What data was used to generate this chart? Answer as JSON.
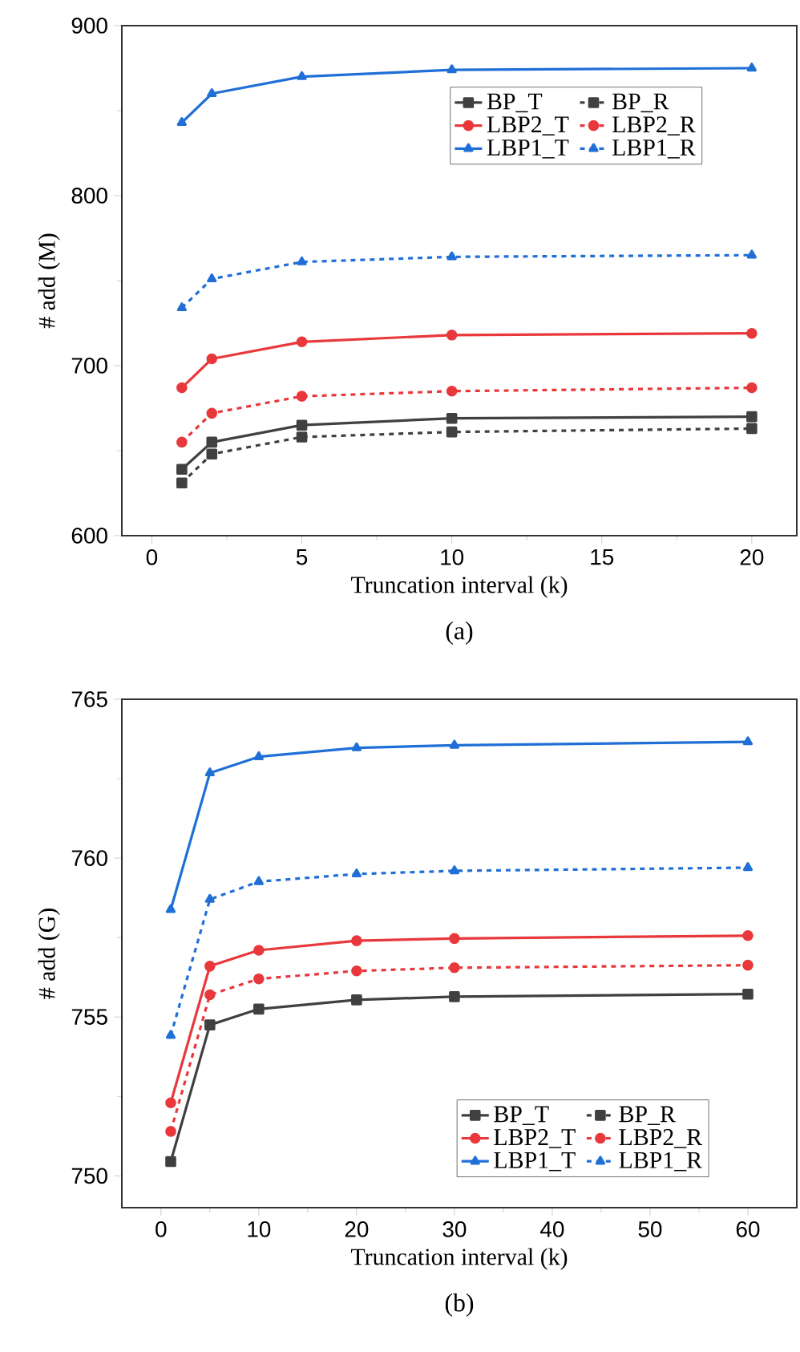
{
  "chart_data": [
    {
      "type": "line",
      "title": "(a)",
      "xlabel": "Truncation interval (k)",
      "ylabel": "# add (M)",
      "x": [
        1,
        2,
        5,
        10,
        20
      ],
      "xlim": [
        -1,
        21.5
      ],
      "ylim": [
        600,
        900
      ],
      "xticks": [
        0,
        5,
        10,
        15,
        20
      ],
      "yticks": [
        600,
        700,
        800,
        900
      ],
      "legend": "top right",
      "grid": false,
      "series": [
        {
          "name": "BP_T",
          "color": "#404040",
          "marker": "square",
          "line_style": "solid",
          "values": [
            639,
            655,
            665,
            669,
            670
          ]
        },
        {
          "name": "BP_R",
          "color": "#404040",
          "marker": "square",
          "line_style": "dashed",
          "values": [
            631,
            648,
            658,
            661,
            663
          ]
        },
        {
          "name": "LBP2_T",
          "color": "#e8383b",
          "marker": "circle",
          "line_style": "solid",
          "values": [
            687,
            704,
            714,
            718,
            719
          ]
        },
        {
          "name": "LBP2_R",
          "color": "#e8383b",
          "marker": "circle",
          "line_style": "dashed",
          "values": [
            655,
            672,
            682,
            685,
            687
          ]
        },
        {
          "name": "LBP1_T",
          "color": "#1f6fd6",
          "marker": "triangle",
          "line_style": "solid",
          "values": [
            843,
            860,
            870,
            874,
            875
          ]
        },
        {
          "name": "LBP1_R",
          "color": "#1f6fd6",
          "marker": "triangle",
          "line_style": "dashed",
          "values": [
            734,
            751,
            761,
            764,
            765
          ]
        }
      ]
    },
    {
      "type": "line",
      "title": "(b)",
      "xlabel": "Truncation interval (k)",
      "ylabel": "# add (G)",
      "x": [
        1,
        5,
        10,
        20,
        30,
        60
      ],
      "xlim": [
        -4,
        65
      ],
      "ylim": [
        749,
        765
      ],
      "xticks": [
        0,
        10,
        20,
        30,
        40,
        50,
        60
      ],
      "yticks": [
        750,
        755,
        760,
        765
      ],
      "legend": "bottom right",
      "grid": false,
      "series": [
        {
          "name": "BP_T",
          "color": "#404040",
          "marker": "square",
          "line_style": "solid",
          "values": [
            750.45,
            754.75,
            755.25,
            755.54,
            755.64,
            755.72
          ]
        },
        {
          "name": "BP_R",
          "color": "#404040",
          "marker": "square",
          "line_style": "dashed",
          "values": [
            null,
            null,
            null,
            null,
            null,
            null
          ]
        },
        {
          "name": "LBP2_T",
          "color": "#e8383b",
          "marker": "circle",
          "line_style": "solid",
          "values": [
            752.3,
            756.6,
            757.1,
            757.4,
            757.47,
            757.56
          ]
        },
        {
          "name": "LBP2_R",
          "color": "#e8383b",
          "marker": "circle",
          "line_style": "dashed",
          "values": [
            751.4,
            755.7,
            756.2,
            756.45,
            756.55,
            756.63
          ]
        },
        {
          "name": "LBP1_T",
          "color": "#1f6fd6",
          "marker": "triangle",
          "line_style": "solid",
          "values": [
            758.38,
            762.68,
            763.19,
            763.47,
            763.55,
            763.66
          ]
        },
        {
          "name": "LBP1_R",
          "color": "#1f6fd6",
          "marker": "triangle",
          "line_style": "dashed",
          "values": [
            754.42,
            758.7,
            759.26,
            759.5,
            759.6,
            759.7
          ]
        }
      ]
    }
  ]
}
